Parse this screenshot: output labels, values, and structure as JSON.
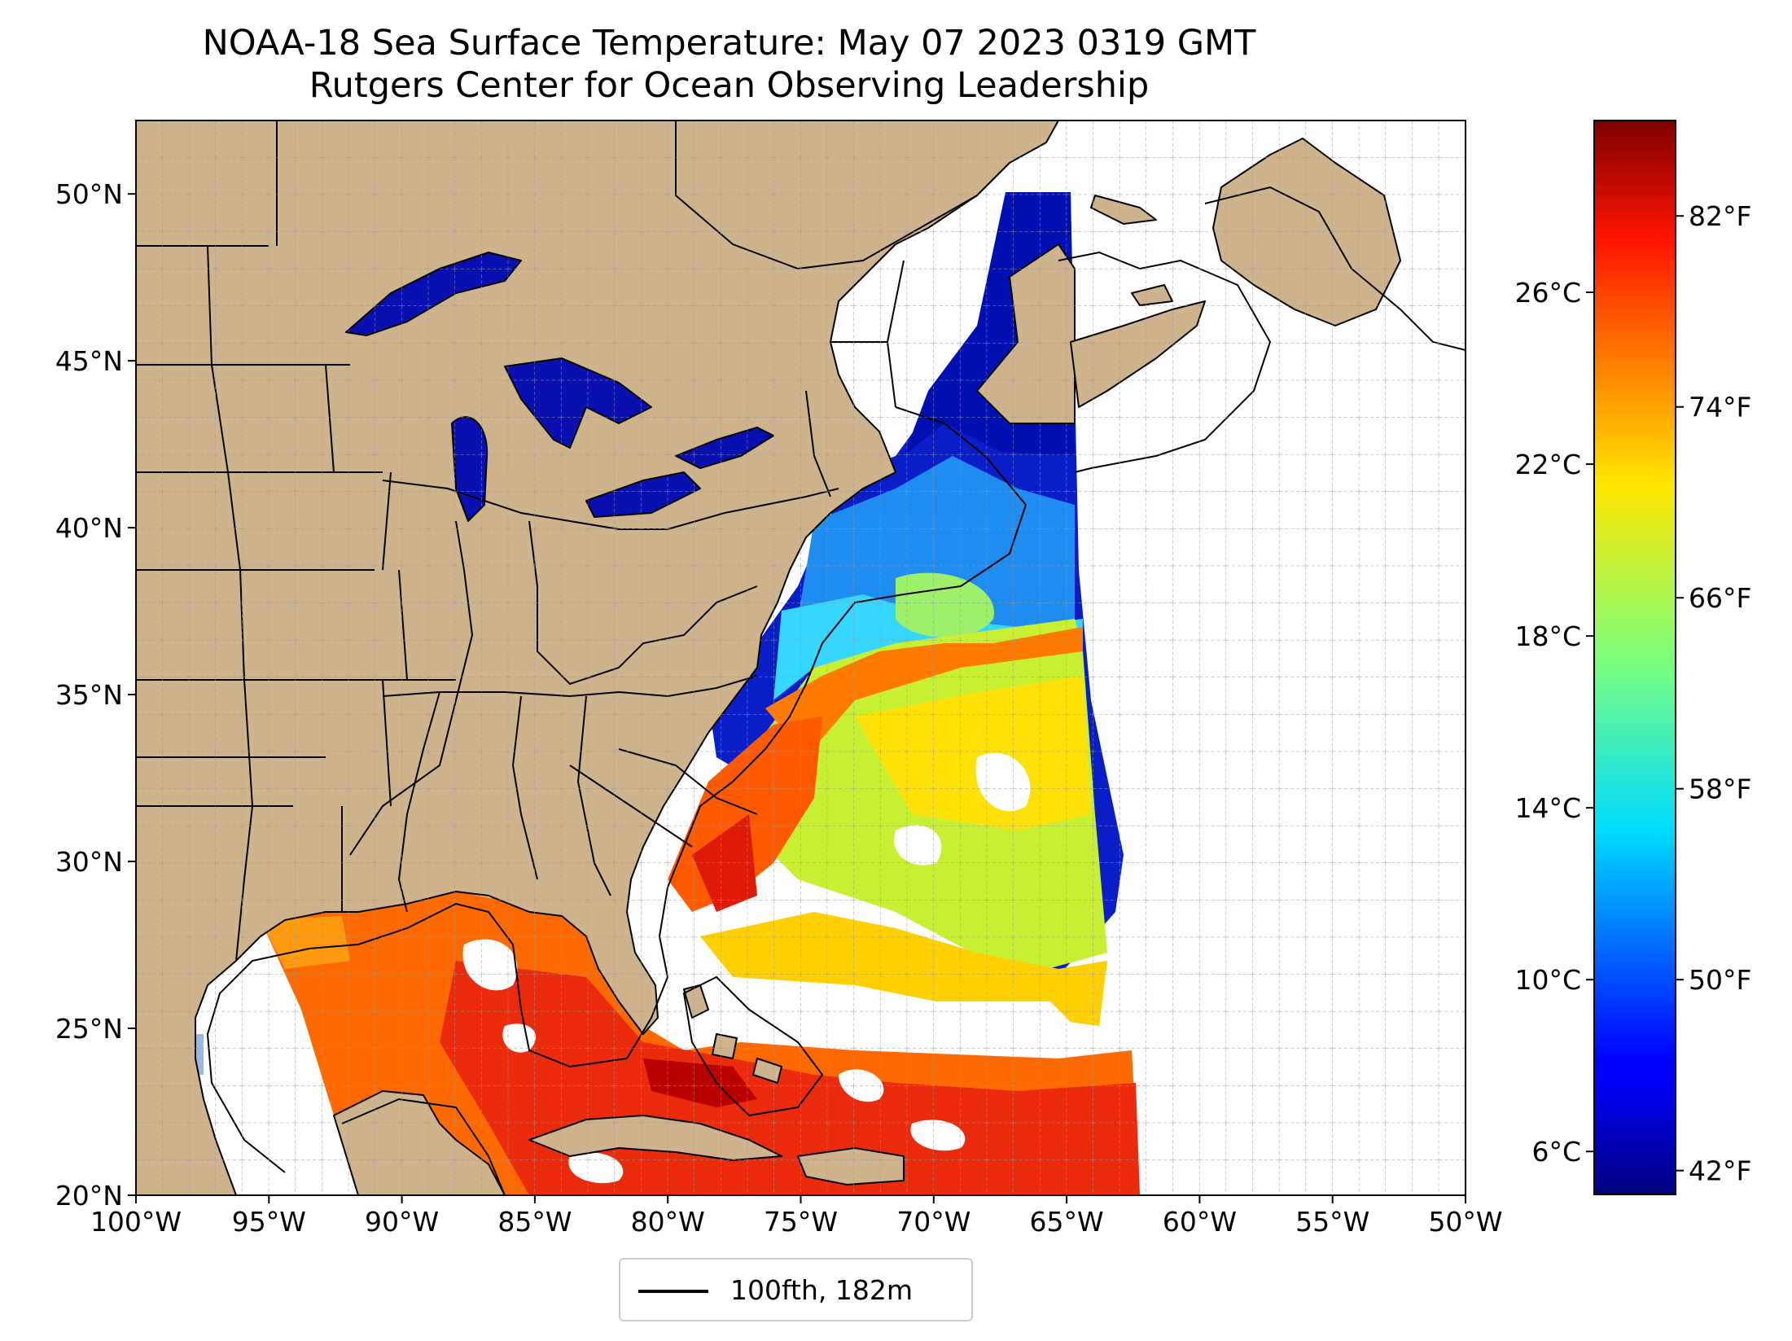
{
  "header": {
    "title": "NOAA-18 Sea Surface Temperature: May 07 2023 0319 GMT",
    "subtitle": "Rutgers Center for Ocean Observing Leadership"
  },
  "map": {
    "lon_range": [
      -100,
      -50
    ],
    "lat_range": [
      20,
      52.2
    ],
    "lon_ticks": [
      {
        "value": -100,
        "label": "100°W"
      },
      {
        "value": -95,
        "label": "95°W"
      },
      {
        "value": -90,
        "label": "90°W"
      },
      {
        "value": -85,
        "label": "85°W"
      },
      {
        "value": -80,
        "label": "80°W"
      },
      {
        "value": -75,
        "label": "75°W"
      },
      {
        "value": -70,
        "label": "70°W"
      },
      {
        "value": -65,
        "label": "65°W"
      },
      {
        "value": -60,
        "label": "60°W"
      },
      {
        "value": -55,
        "label": "55°W"
      },
      {
        "value": -50,
        "label": "50°W"
      }
    ],
    "lat_ticks": [
      {
        "value": 50,
        "label": "50°N"
      },
      {
        "value": 45,
        "label": "45°N"
      },
      {
        "value": 40,
        "label": "40°N"
      },
      {
        "value": 35,
        "label": "35°N"
      },
      {
        "value": 30,
        "label": "30°N"
      },
      {
        "value": 25,
        "label": "25°N"
      },
      {
        "value": 20,
        "label": "20°N"
      }
    ],
    "gridlines": "dashed, 1 degree",
    "land_color": "#cfb38d",
    "lake_color": "#9bb8e2",
    "ocean_no_data_color": "#ffffff"
  },
  "colorbar": {
    "colormap": "jet",
    "celsius_range": [
      5,
      30
    ],
    "celsius_ticks": [
      {
        "value": 6,
        "label": "6°C"
      },
      {
        "value": 10,
        "label": "10°C"
      },
      {
        "value": 14,
        "label": "14°C"
      },
      {
        "value": 18,
        "label": "18°C"
      },
      {
        "value": 22,
        "label": "22°C"
      },
      {
        "value": 26,
        "label": "26°C"
      }
    ],
    "fahrenheit_ticks": [
      {
        "value": 42,
        "label": "42°F"
      },
      {
        "value": 50,
        "label": "50°F"
      },
      {
        "value": 58,
        "label": "58°F"
      },
      {
        "value": 66,
        "label": "66°F"
      },
      {
        "value": 74,
        "label": "74°F"
      },
      {
        "value": 82,
        "label": "82°F"
      }
    ]
  },
  "legend": {
    "entry": "100fth, 182m",
    "line_color": "#000000"
  }
}
